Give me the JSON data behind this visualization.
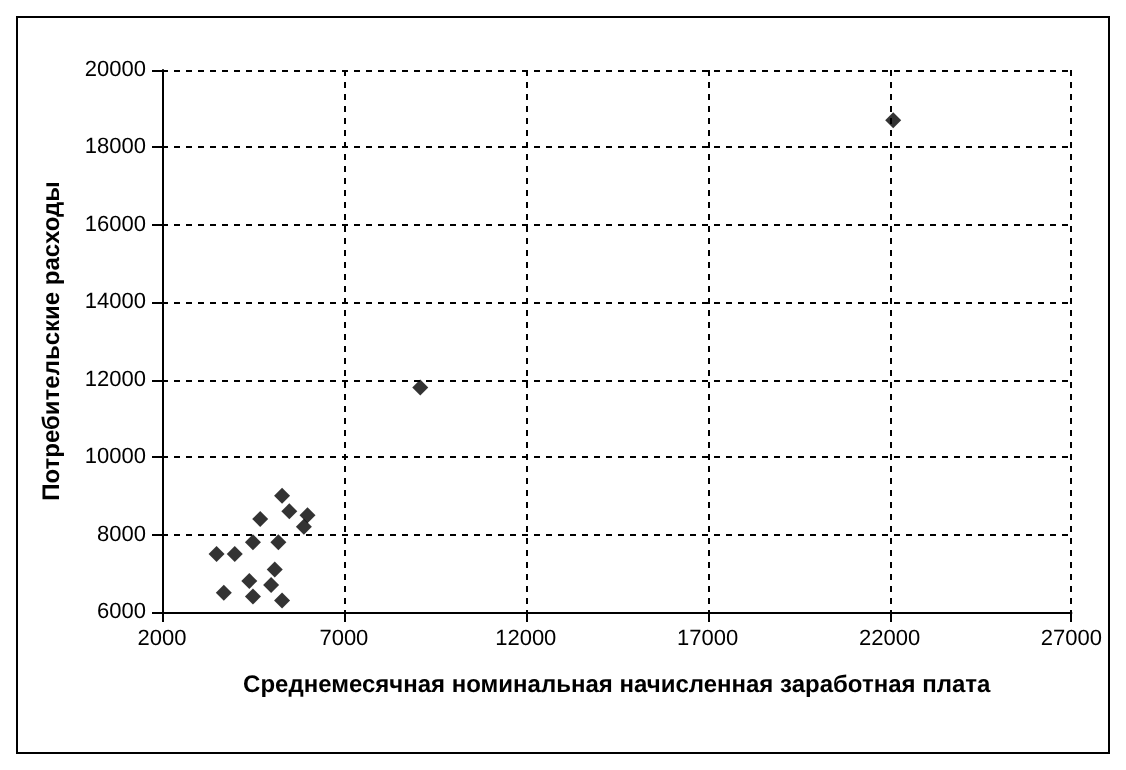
{
  "chart_data": {
    "type": "scatter",
    "xlabel": "Среднемесячная номинальная начисленная заработная плата",
    "ylabel": "Потребительские расходы",
    "x": [
      3500,
      4000,
      3700,
      4400,
      4500,
      4700,
      4400,
      4500,
      5000,
      5100,
      5200,
      5300,
      5300,
      5500,
      6000,
      5900,
      9100,
      22100
    ],
    "values": [
      7500,
      7500,
      6500,
      null,
      7800,
      8400,
      6800,
      6400,
      6700,
      7100,
      7800,
      6300,
      9000,
      8600,
      8500,
      8200,
      11800,
      18700
    ],
    "color": "#000000",
    "marker": "diamond",
    "grid": true,
    "xlim": [
      2000,
      27000
    ],
    "xticks": [
      2000,
      7000,
      12000,
      17000,
      22000,
      27000
    ],
    "ylim": [
      6000,
      20000
    ],
    "yticks": [
      6000,
      8000,
      10000,
      12000,
      14000,
      16000,
      18000,
      20000
    ]
  }
}
